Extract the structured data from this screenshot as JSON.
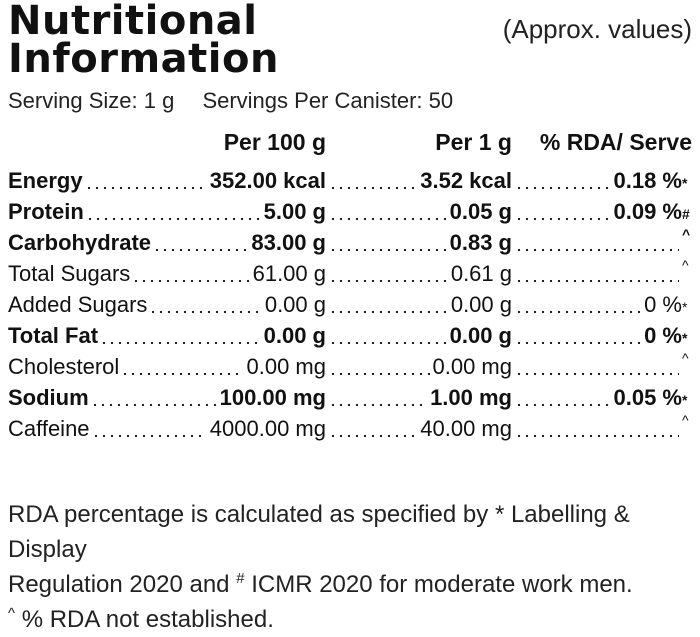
{
  "title": {
    "line1": "Nutritional",
    "line2": "Information"
  },
  "approx_note": "(Approx. values)",
  "serving": {
    "size": "Serving Size: 1 g",
    "per_canister": "Servings Per Canister: 50"
  },
  "columns": {
    "per100": "Per 100 g",
    "per1": "Per 1 g",
    "rda": "% RDA/ Serve"
  },
  "rows": [
    {
      "label": "Energy",
      "per100": "352.00 kcal",
      "per1": "3.52 kcal",
      "rda": "0.18 %",
      "mark": "*",
      "bold": true
    },
    {
      "label": "Protein",
      "per100": "5.00 g",
      "per1": "0.05 g",
      "rda": "0.09 %",
      "mark": "#",
      "bold": true
    },
    {
      "label": "Carbohydrate",
      "per100": "83.00 g",
      "per1": "0.83 g",
      "rda": "",
      "mark": "^",
      "bold": true
    },
    {
      "label": "Total Sugars",
      "per100": "61.00 g",
      "per1": "0.61 g",
      "rda": "",
      "mark": "^",
      "bold": false
    },
    {
      "label": "Added Sugars",
      "per100": "0.00 g",
      "per1": "0.00 g",
      "rda": "0 %",
      "mark": "*",
      "bold": false
    },
    {
      "label": "Total Fat",
      "per100": "0.00 g",
      "per1": "0.00 g",
      "rda": "0 %",
      "mark": "*",
      "bold": true
    },
    {
      "label": "Cholesterol",
      "per100": "0.00 mg",
      "per1": "0.00 mg",
      "rda": "",
      "mark": "^",
      "bold": false
    },
    {
      "label": "Sodium",
      "per100": "100.00 mg",
      "per1": "1.00 mg",
      "rda": "0.05 %",
      "mark": "*",
      "bold": true
    },
    {
      "label": "Caffeine",
      "per100": "4000.00 mg",
      "per1": "40.00 mg",
      "rda": "",
      "mark": "^",
      "bold": false
    }
  ],
  "footer": {
    "line1": "RDA percentage is calculated as specified by * Labelling & Display",
    "line2_pre": "Regulation 2020 and ",
    "line2_mark": "#",
    "line2_post": " ICMR 2020 for moderate work men.",
    "line3_mark": "^",
    "line3_text": " % RDA not established."
  }
}
